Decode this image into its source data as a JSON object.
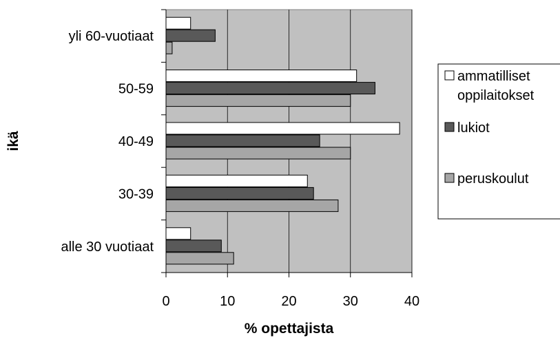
{
  "chart_data": {
    "type": "bar",
    "orientation": "horizontal",
    "title": "",
    "xlabel": "% opettajista",
    "ylabel": "ikä",
    "xlim": [
      0,
      40
    ],
    "xticks": [
      0,
      10,
      20,
      30,
      40
    ],
    "grid": true,
    "legend_position": "right",
    "categories": [
      "alle 30 vuotiaat",
      "30-39",
      "40-49",
      "50-59",
      "yli 60-vuotiaat"
    ],
    "series": [
      {
        "name": "ammatilliset oppilaitokset",
        "name_lines": [
          "ammatilliset",
          "oppilaitokset"
        ],
        "color": "#ffffff",
        "values": [
          4,
          23,
          38,
          31,
          4
        ]
      },
      {
        "name": "lukiot",
        "name_lines": [
          "lukiot"
        ],
        "color": "#595959",
        "values": [
          9,
          24,
          25,
          34,
          8
        ]
      },
      {
        "name": "peruskoulut",
        "name_lines": [
          "peruskoulut"
        ],
        "color": "#a6a6a6",
        "values": [
          11,
          28,
          30,
          30,
          1
        ]
      }
    ],
    "plot_background": "#c0c0c0"
  }
}
